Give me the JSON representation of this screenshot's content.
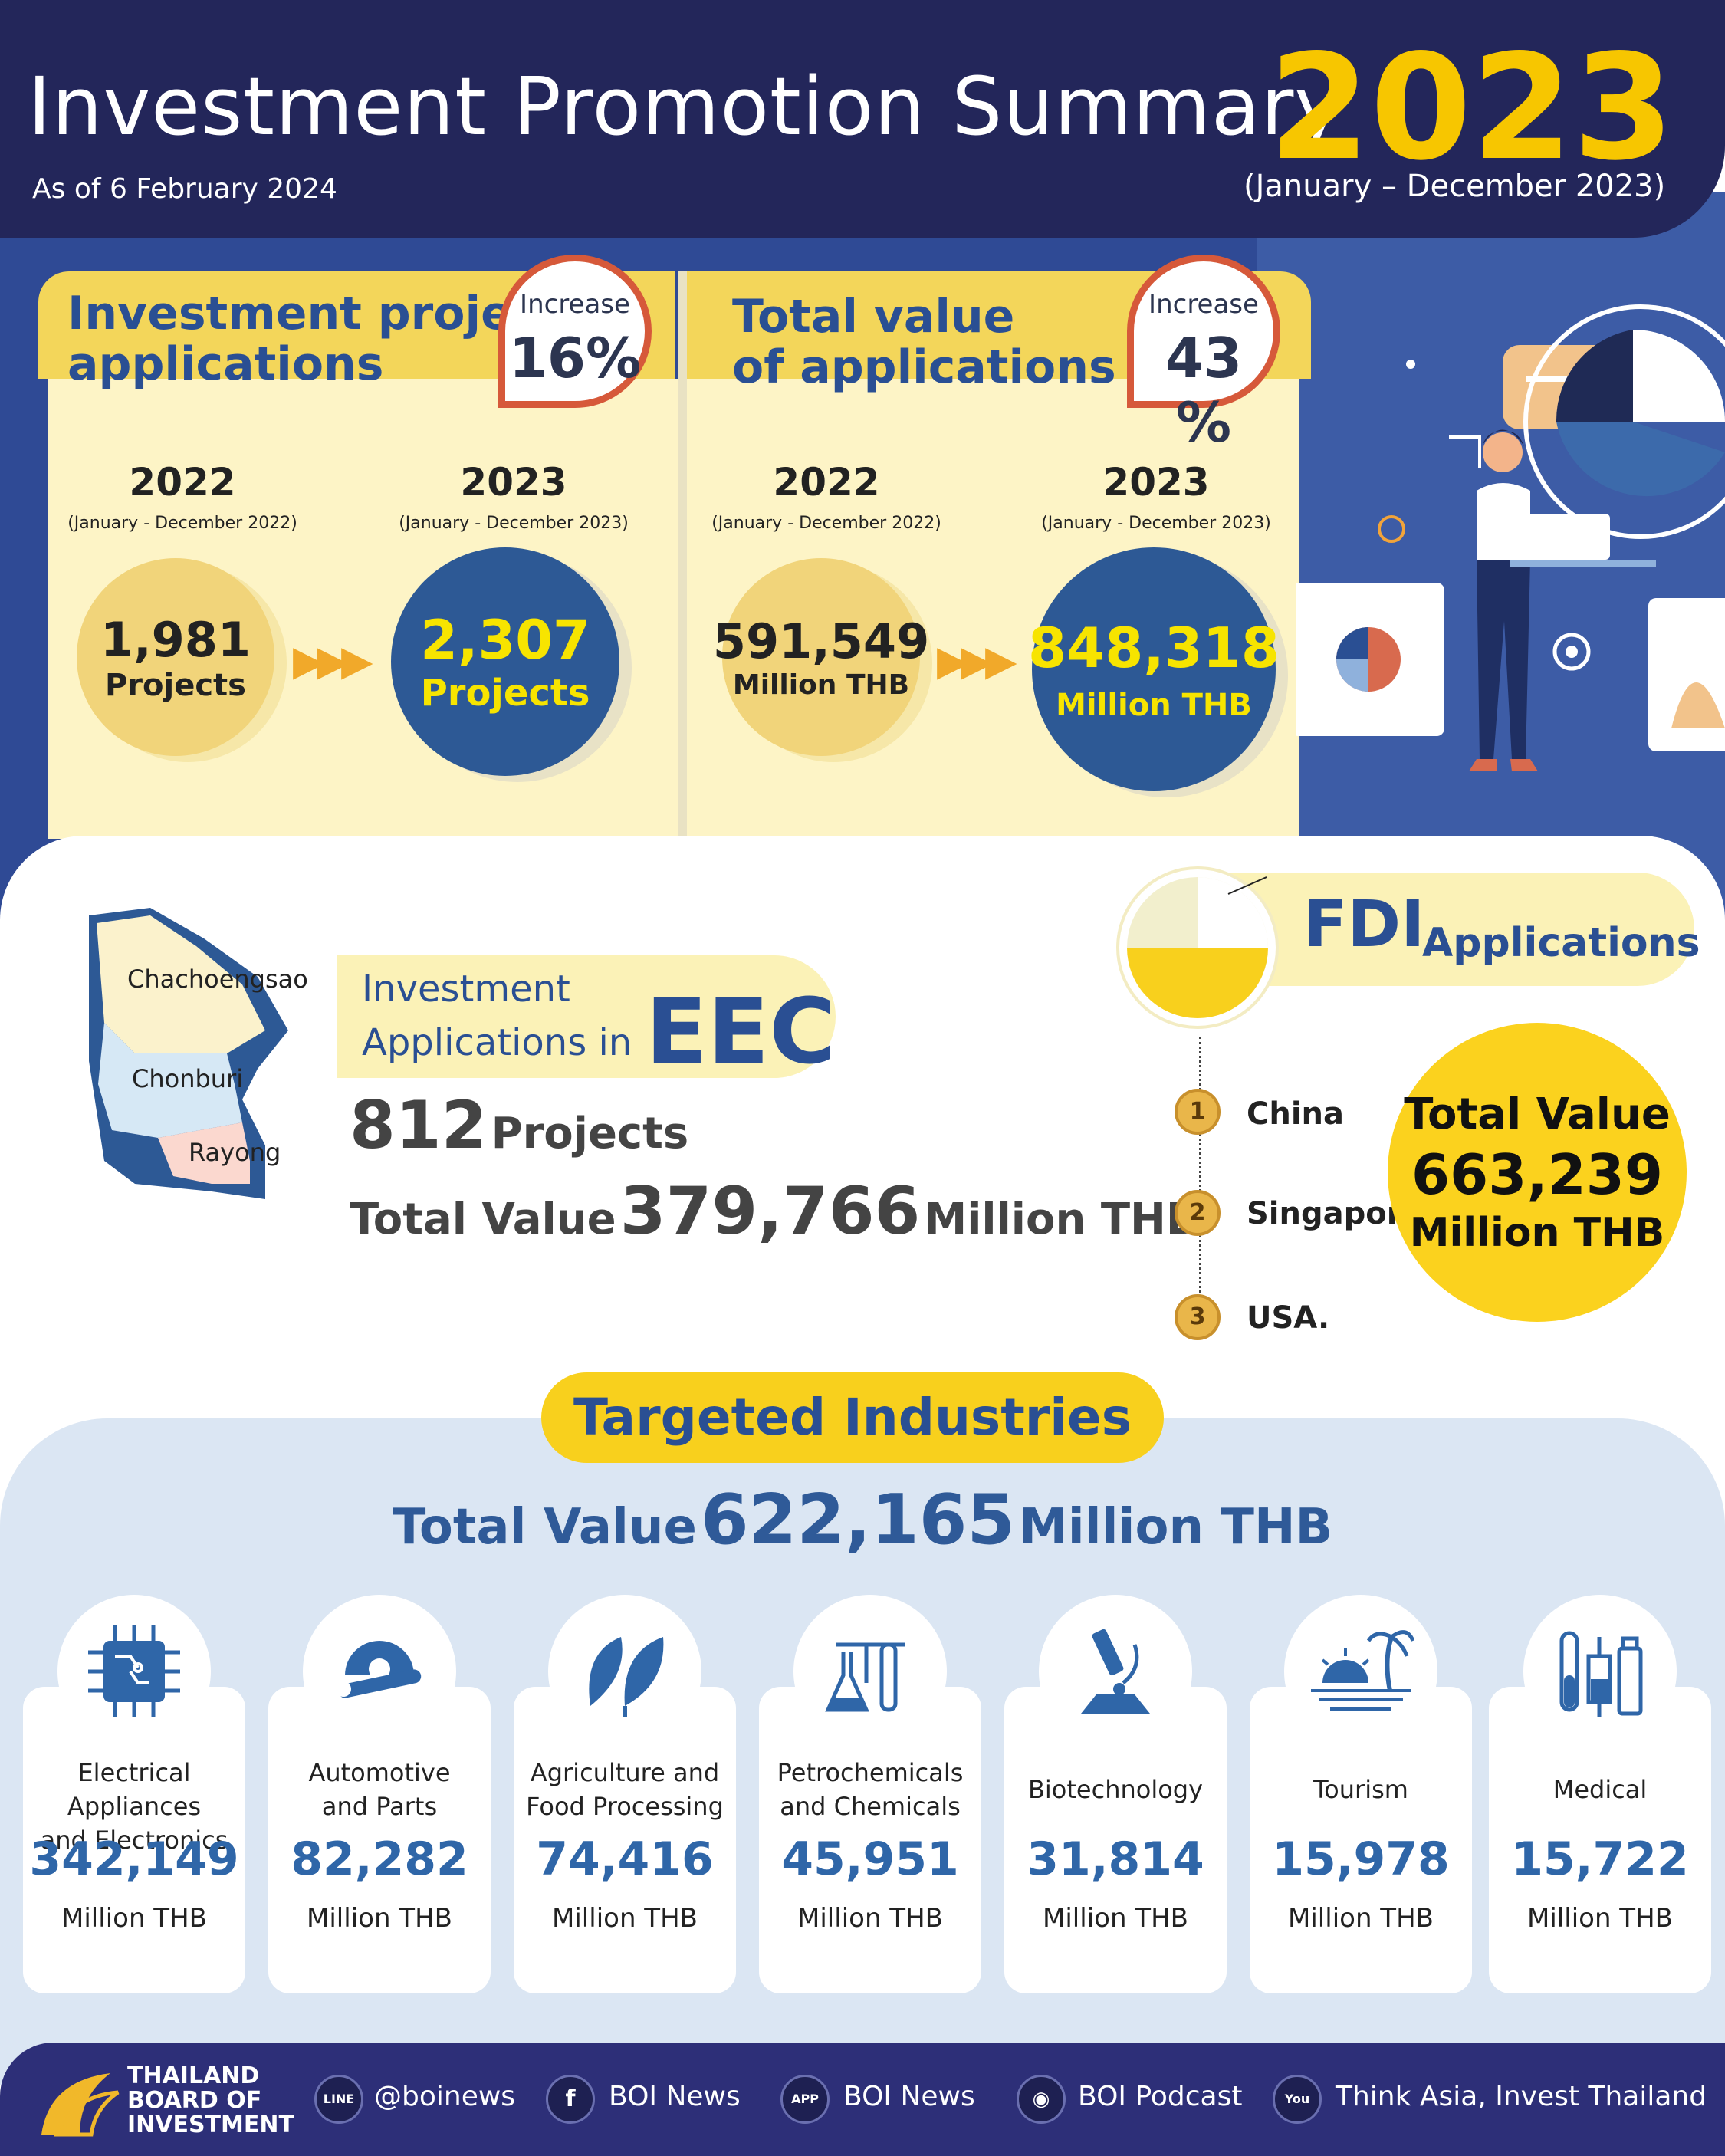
{
  "header": {
    "title": "Investment Promotion Summary",
    "as_of": "As of 6 February 2024",
    "year": "2023",
    "period": "(January – December 2023)"
  },
  "applications": {
    "title_line1": "Investment project",
    "title_line2": "applications",
    "badge_label": "Increase",
    "badge_value": "16%",
    "prev_year": "2022",
    "prev_period": "(January - December 2022)",
    "prev_value": "1,981",
    "prev_unit": "Projects",
    "cur_year": "2023",
    "cur_period": "(January - December 2023)",
    "cur_value": "2,307",
    "cur_unit": "Projects"
  },
  "value": {
    "title_line1": "Total value",
    "title_line2": "of applications",
    "badge_label": "Increase",
    "badge_value": "43 %",
    "prev_year": "2022",
    "prev_period": "(January - December 2022)",
    "prev_value": "591,549",
    "prev_unit": "Million THB",
    "cur_year": "2023",
    "cur_period": "(January - December 2023)",
    "cur_value": "848,318",
    "cur_unit": "Million THB"
  },
  "eec": {
    "title_line1": "Investment",
    "title_line2": "Applications in",
    "title_big": "EEC",
    "projects_value": "812",
    "projects_unit": "Projects",
    "total_label": "Total Value",
    "total_value": "379,766",
    "total_unit": "Million THB",
    "map_regions": [
      "Chachoengsao",
      "Chonburi",
      "Rayong"
    ]
  },
  "fdi": {
    "title_big": "FDI",
    "title_small": "Applications",
    "ranks": [
      {
        "rank": "1",
        "country": "China"
      },
      {
        "rank": "2",
        "country": "Singapore"
      },
      {
        "rank": "3",
        "country": "USA."
      }
    ],
    "total_label": "Total Value",
    "total_value": "663,239",
    "total_unit": "Million THB"
  },
  "targeted": {
    "title": "Targeted Industries",
    "total_label": "Total Value",
    "total_value": "622,165",
    "total_unit": "Million THB",
    "industries": [
      {
        "line1": "Electrical Appliances",
        "line2": "and Electronics",
        "value": "342,149",
        "unit": "Million THB",
        "icon": "circuit-chip-icon"
      },
      {
        "line1": "Automotive",
        "line2": "and Parts",
        "value": "82,282",
        "unit": "Million THB",
        "icon": "wrench-gear-icon"
      },
      {
        "line1": "Agriculture and",
        "line2": "Food Processing",
        "value": "74,416",
        "unit": "Million THB",
        "icon": "leaf-icon"
      },
      {
        "line1": "Petrochemicals",
        "line2": "and Chemicals",
        "value": "45,951",
        "unit": "Million THB",
        "icon": "lab-flask-icon"
      },
      {
        "line1": "Biotechnology",
        "line2": "",
        "value": "31,814",
        "unit": "Million THB",
        "icon": "microscope-icon"
      },
      {
        "line1": "Tourism",
        "line2": "",
        "value": "15,978",
        "unit": "Million THB",
        "icon": "beach-sun-icon"
      },
      {
        "line1": "Medical",
        "line2": "",
        "value": "15,722",
        "unit": "Million THB",
        "icon": "medical-vials-icon"
      }
    ]
  },
  "footer": {
    "logo_line1": "THAILAND",
    "logo_line2": "BOARD OF",
    "logo_line3": "INVESTMENT",
    "links": [
      {
        "icon": "line-icon",
        "icon_text": "LINE",
        "label": "@boinews"
      },
      {
        "icon": "facebook-icon",
        "icon_text": "f",
        "label": "BOI News"
      },
      {
        "icon": "app-icon",
        "icon_text": "APP",
        "label": "BOI News"
      },
      {
        "icon": "podcast-icon",
        "icon_text": "◉",
        "label": "BOI Podcast"
      },
      {
        "icon": "youtube-icon",
        "icon_text": "You",
        "label": "Think Asia, Invest Thailand"
      }
    ]
  },
  "colors": {
    "navy": "#23265a",
    "blue": "#2f4a95",
    "yellow": "#f7c600",
    "accent_blue": "#2f66a8",
    "badge_border": "#d6593a"
  }
}
